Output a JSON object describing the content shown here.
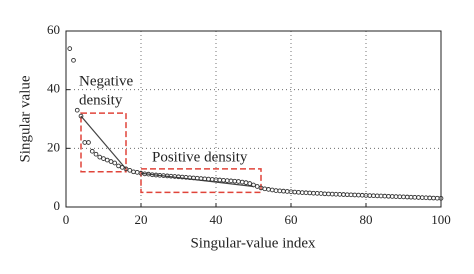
{
  "chart_data": {
    "type": "scatter",
    "x_label": "Singular-value index",
    "y_label": "Singular value",
    "x": [
      1,
      2,
      3,
      4,
      5,
      6,
      7,
      8,
      9,
      10,
      11,
      12,
      13,
      14,
      15,
      16,
      17,
      18,
      19,
      20,
      21,
      22,
      23,
      24,
      25,
      26,
      27,
      28,
      29,
      30,
      31,
      32,
      33,
      34,
      35,
      36,
      37,
      38,
      39,
      40,
      41,
      42,
      43,
      44,
      45,
      46,
      47,
      48,
      49,
      50,
      51,
      52,
      53,
      54,
      55,
      56,
      57,
      58,
      59,
      60,
      61,
      62,
      63,
      64,
      65,
      66,
      67,
      68,
      69,
      70,
      71,
      72,
      73,
      74,
      75,
      76,
      77,
      78,
      79,
      80,
      81,
      82,
      83,
      84,
      85,
      86,
      87,
      88,
      89,
      90,
      91,
      92,
      93,
      94,
      95,
      96,
      97,
      98,
      99,
      100
    ],
    "values": [
      54,
      50,
      33,
      31,
      22,
      22,
      19,
      18,
      17,
      16.5,
      16,
      15.5,
      15,
      14,
      13.5,
      13,
      12.5,
      12,
      11.8,
      11.5,
      11.3,
      11.2,
      11,
      10.9,
      10.8,
      10.7,
      10.6,
      10.5,
      10.4,
      10.3,
      10.2,
      10.1,
      10,
      9.9,
      9.8,
      9.7,
      9.6,
      9.5,
      9.4,
      9.3,
      9.2,
      9.1,
      9,
      8.9,
      8.8,
      8.7,
      8.5,
      8.3,
      8,
      7.5,
      7,
      6.5,
      6.2,
      6,
      5.8,
      5.6,
      5.5,
      5.4,
      5.3,
      5.2,
      5.1,
      5,
      4.9,
      4.85,
      4.8,
      4.7,
      4.65,
      4.6,
      4.5,
      4.45,
      4.4,
      4.35,
      4.3,
      4.25,
      4.2,
      4.15,
      4.1,
      4.05,
      4,
      3.95,
      3.9,
      3.85,
      3.8,
      3.75,
      3.7,
      3.65,
      3.6,
      3.55,
      3.5,
      3.45,
      3.4,
      3.35,
      3.3,
      3.25,
      3.2,
      3.15,
      3.1,
      3.05,
      3,
      2.95
    ],
    "color": "#333333",
    "xlim": [
      0,
      100
    ],
    "xticks": [
      0,
      20,
      40,
      60,
      80,
      100
    ],
    "ylim": [
      0,
      60
    ],
    "yticks": [
      0,
      20,
      40,
      60
    ],
    "grid": true,
    "regions": [
      {
        "label_lines": [
          "Negative",
          "density"
        ],
        "xlim": [
          4,
          16
        ],
        "ylim": [
          12,
          32
        ],
        "fit_x": [
          4,
          16
        ],
        "fit_y": [
          31,
          13
        ]
      },
      {
        "label_lines": [
          "Positive density"
        ],
        "xlim": [
          20,
          52
        ],
        "ylim": [
          5,
          13
        ],
        "fit_x": [
          20,
          50
        ],
        "fit_y": [
          11.5,
          7
        ]
      }
    ],
    "region_color": "#e0443a"
  }
}
